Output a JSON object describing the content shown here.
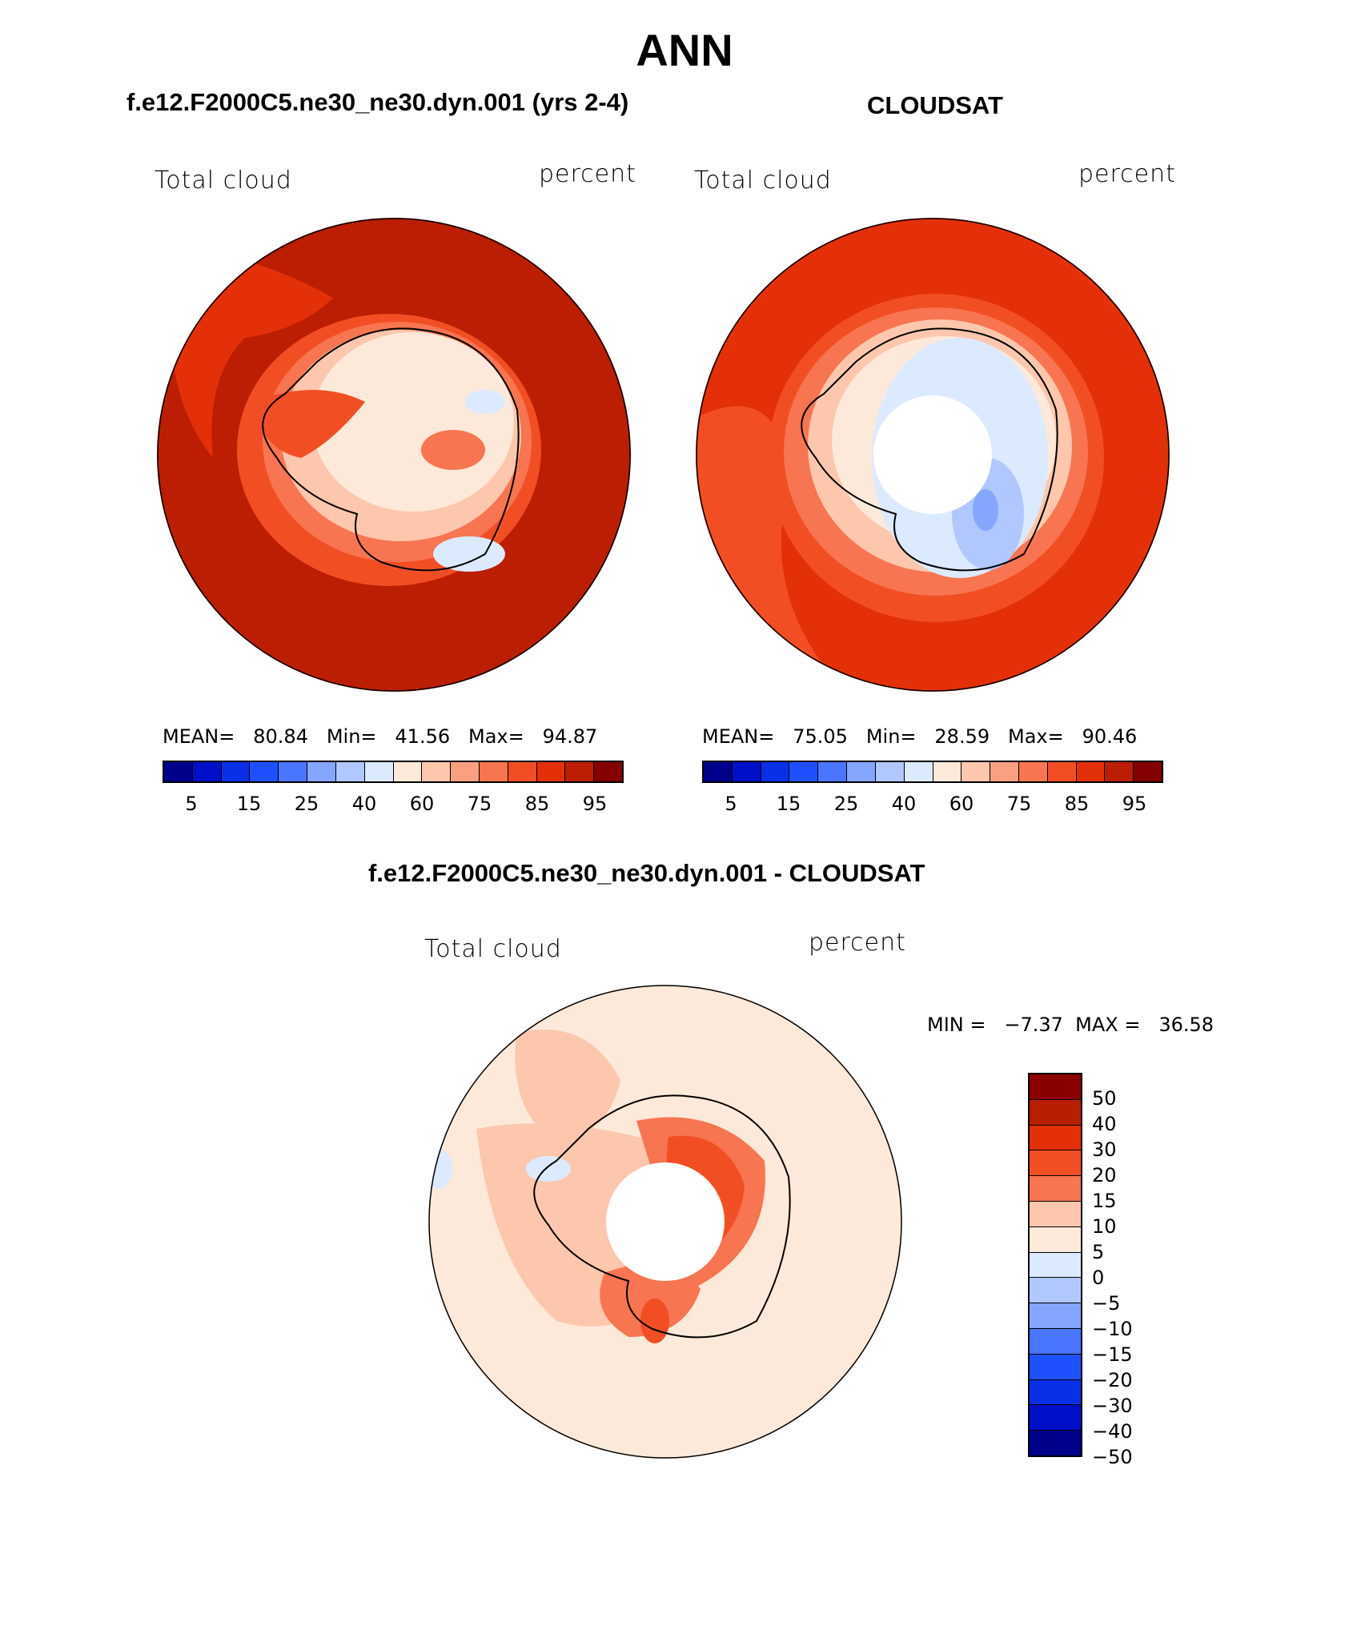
{
  "figure": {
    "title": "ANN",
    "bottom_title": "f.e12.F2000C5.ne30_ne30.dyn.001 - CLOUDSAT"
  },
  "panels": {
    "model": {
      "title": "f.e12.F2000C5.ne30_ne30.dyn.001 (yrs 2-4)",
      "left_label": "Total cloud",
      "right_label": "percent",
      "stats": "MEAN=   80.84   Min=   41.56   Max=   94.87",
      "mean": 80.84,
      "min": 41.56,
      "max": 94.87
    },
    "obs": {
      "title": "CLOUDSAT",
      "left_label": "Total cloud",
      "right_label": "percent",
      "stats": "MEAN=   75.05   Min=   28.59   Max=   90.46",
      "mean": 75.05,
      "min": 28.59,
      "max": 90.46
    },
    "diff": {
      "left_label": "Total cloud",
      "right_label": "percent",
      "stats": "MIN =   −7.37  MAX =   36.58",
      "min": -7.37,
      "max": 36.58
    }
  },
  "colorbars": {
    "abs_colors": [
      "#00008b",
      "#0010c8",
      "#0a30e6",
      "#1f50ff",
      "#4a75ff",
      "#85a6ff",
      "#b0c8ff",
      "#dceaff",
      "#fde9d9",
      "#fcc7ad",
      "#f8a080",
      "#f77550",
      "#f24e24",
      "#e43008",
      "#bb1e02",
      "#830000"
    ],
    "abs_tick_labels": [
      "5",
      "15",
      "25",
      "40",
      "60",
      "75",
      "85",
      "95"
    ],
    "diff_colors_top_to_bottom": [
      "#8a0000",
      "#b81e02",
      "#e43008",
      "#f24e24",
      "#f77550",
      "#fcc7ad",
      "#fde9d9",
      "#dceaff",
      "#b0c8ff",
      "#85a6ff",
      "#4a75ff",
      "#1f50ff",
      "#0a30e6",
      "#0010c8",
      "#00008b"
    ],
    "diff_tick_labels": [
      "50",
      "40",
      "30",
      "20",
      "15",
      "10",
      "5",
      "0",
      "−5",
      "−10",
      "−15",
      "−20",
      "−30",
      "−40",
      "−50"
    ]
  },
  "chart_data": [
    {
      "type": "heatmap",
      "projection": "south polar stereographic",
      "title": "f.e12.F2000C5.ne30_ne30.dyn.001 (yrs 2-4)",
      "variable": "Total cloud",
      "units": "percent",
      "levels": [
        5,
        10,
        15,
        20,
        25,
        30,
        40,
        50,
        60,
        65,
        75,
        80,
        85,
        90,
        95
      ],
      "mean": 80.84,
      "min": 41.56,
      "max": 94.87
    },
    {
      "type": "heatmap",
      "projection": "south polar stereographic",
      "title": "CLOUDSAT",
      "variable": "Total cloud",
      "units": "percent",
      "levels": [
        5,
        10,
        15,
        20,
        25,
        30,
        40,
        50,
        60,
        65,
        75,
        80,
        85,
        90,
        95
      ],
      "mean": 75.05,
      "min": 28.59,
      "max": 90.46
    },
    {
      "type": "heatmap",
      "projection": "south polar stereographic",
      "title": "f.e12.F2000C5.ne30_ne30.dyn.001 - CLOUDSAT",
      "variable": "Total cloud",
      "units": "percent",
      "levels": [
        -50,
        -40,
        -30,
        -20,
        -15,
        -10,
        -5,
        0,
        5,
        10,
        15,
        20,
        30,
        40,
        50
      ],
      "min": -7.37,
      "max": 36.58
    }
  ]
}
